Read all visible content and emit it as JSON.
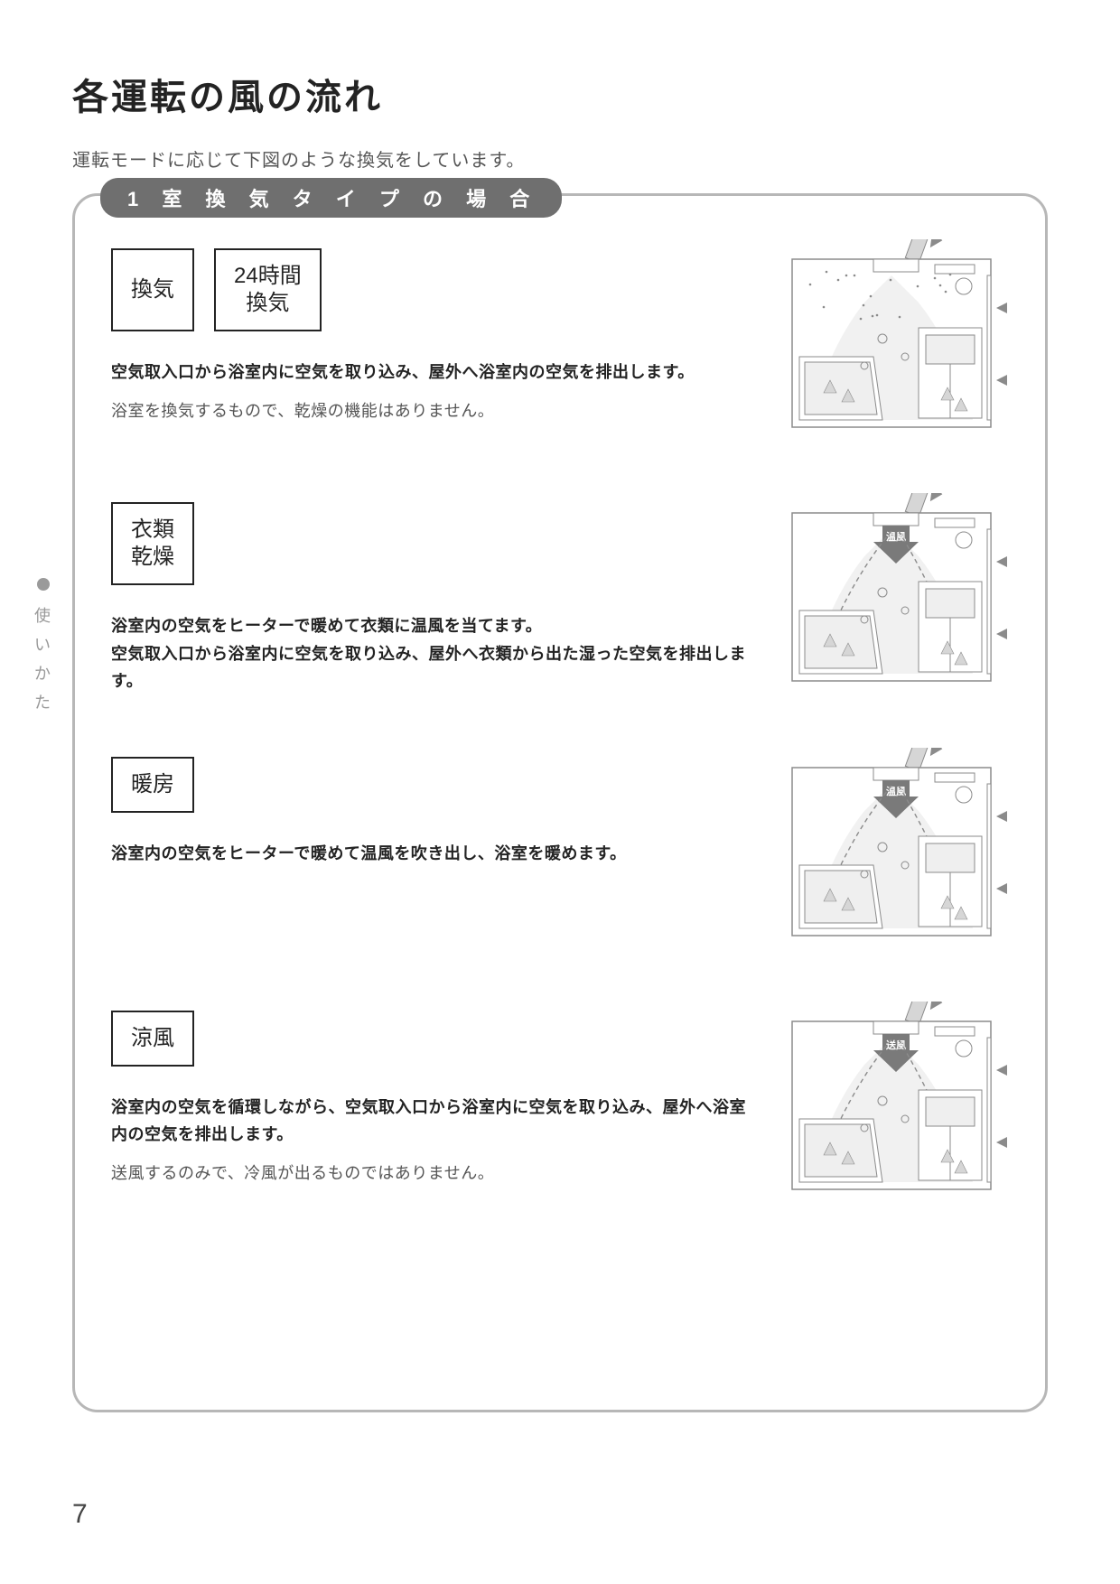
{
  "page": {
    "title": "各運転の風の流れ",
    "intro": "運転モードに応じて下図のような換気をしています。",
    "number": "7"
  },
  "section": {
    "tab_label": "1 室 換 気 タ イ プ の 場 合"
  },
  "side_tab": {
    "c1": "使",
    "c2": "い",
    "c3": "か",
    "c4": "た"
  },
  "modes": [
    {
      "buttons": [
        {
          "lines": [
            "換気"
          ]
        },
        {
          "lines": [
            "24時間",
            "換気"
          ]
        }
      ],
      "bold": "空気取入口から浴室内に空気を取り込み、屋外へ浴室内の空気を排出します。",
      "note": "浴室を換気するもので、乾燥の機能はありません。",
      "illus": {
        "warm_label": "",
        "arrows": "up",
        "sparkle": true
      }
    },
    {
      "buttons": [
        {
          "lines": [
            "衣類",
            "乾燥"
          ]
        }
      ],
      "bold": "浴室内の空気をヒーターで暖めて衣類に温風を当てます。\n空気取入口から浴室内に空気を取り込み、屋外へ衣類から出た湿った空気を排出します。",
      "note": "",
      "illus": {
        "warm_label": "温風",
        "arrows": "diag",
        "sparkle": false
      }
    },
    {
      "buttons": [
        {
          "lines": [
            "暖房"
          ]
        }
      ],
      "bold": "浴室内の空気をヒーターで暖めて温風を吹き出し、浴室を暖めます。",
      "note": "",
      "illus": {
        "warm_label": "温風",
        "arrows": "diag",
        "sparkle": false
      }
    },
    {
      "buttons": [
        {
          "lines": [
            "涼風"
          ]
        }
      ],
      "bold": "浴室内の空気を循環しながら、空気取入口から浴室内に空気を取り込み、屋外へ浴室内の空気を排出します。",
      "note": "送風するのみで、冷風が出るものではありません。",
      "illus": {
        "warm_label": "送風",
        "arrows": "diag",
        "sparkle": false
      }
    }
  ],
  "colors": {
    "border": "#b7b7b7",
    "tab_bg": "#6f6f6f",
    "text": "#232323",
    "muted": "#555555",
    "side": "#9a9a9a",
    "illus_stroke": "#8b8b8b",
    "illus_fill": "#d6d6d6",
    "illus_light": "#efefef",
    "illus_dark": "#7a7a7a"
  }
}
